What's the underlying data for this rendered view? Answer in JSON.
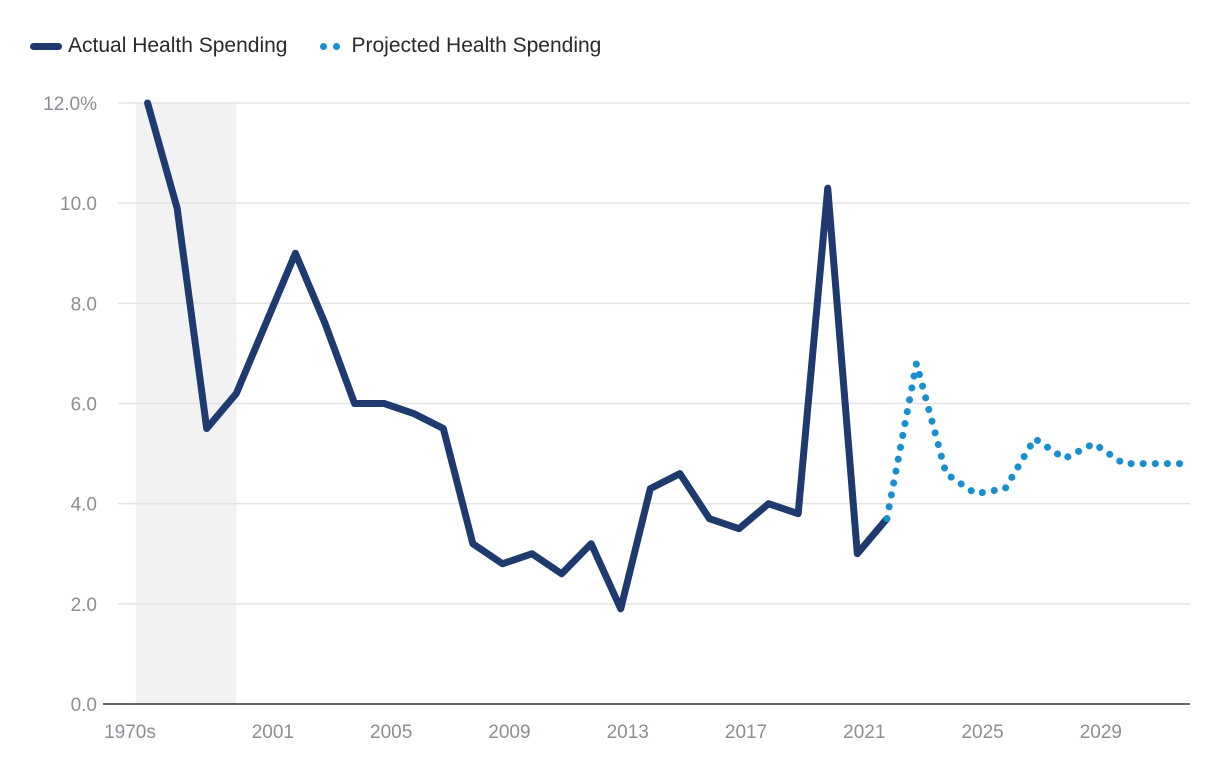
{
  "colors": {
    "actual": "#1f3a6e",
    "projected": "#1a8fd0",
    "grid": "#e3e3e3",
    "axis": "#333333",
    "shade": "#f2f2f2",
    "tick": "#8a8f96"
  },
  "legend": {
    "actual_label": "Actual Health Spending",
    "projected_label": "Projected Health Spending"
  },
  "chart_data": {
    "type": "line",
    "title": "",
    "xlabel": "",
    "ylabel": "",
    "ylim": [
      0,
      12
    ],
    "y_ticks": [
      {
        "value": 0,
        "label": "0.0"
      },
      {
        "value": 2,
        "label": "2.0"
      },
      {
        "value": 4,
        "label": "4.0"
      },
      {
        "value": 6,
        "label": "6.0"
      },
      {
        "value": 8,
        "label": "8.0"
      },
      {
        "value": 10,
        "label": "10.0"
      },
      {
        "value": 12,
        "label": "12.0%"
      }
    ],
    "xlim": [
      1996,
      2032.25
    ],
    "x_ticks": [
      {
        "value": 1996,
        "label": "1970s"
      },
      {
        "value": 2001,
        "label": "2001"
      },
      {
        "value": 2005,
        "label": "2005"
      },
      {
        "value": 2009,
        "label": "2009"
      },
      {
        "value": 2013,
        "label": "2013"
      },
      {
        "value": 2017,
        "label": "2017"
      },
      {
        "value": 2021,
        "label": "2021"
      },
      {
        "value": 2025,
        "label": "2025"
      },
      {
        "value": 2029,
        "label": "2029"
      }
    ],
    "shaded_range": [
      1996.6,
      2000
    ],
    "series": [
      {
        "name": "Actual Health Spending",
        "style": "solid",
        "points": [
          {
            "x": 1997,
            "y": 12.0
          },
          {
            "x": 1998,
            "y": 9.9
          },
          {
            "x": 1999,
            "y": 5.5
          },
          {
            "x": 2000,
            "y": 6.2
          },
          {
            "x": 2001,
            "y": 7.6
          },
          {
            "x": 2002,
            "y": 9.0
          },
          {
            "x": 2003,
            "y": 7.6
          },
          {
            "x": 2004,
            "y": 6.0
          },
          {
            "x": 2005,
            "y": 6.0
          },
          {
            "x": 2006,
            "y": 5.8
          },
          {
            "x": 2007,
            "y": 5.5
          },
          {
            "x": 2008,
            "y": 3.2
          },
          {
            "x": 2009,
            "y": 2.8
          },
          {
            "x": 2010,
            "y": 3.0
          },
          {
            "x": 2011,
            "y": 2.6
          },
          {
            "x": 2012,
            "y": 3.2
          },
          {
            "x": 2013,
            "y": 1.9
          },
          {
            "x": 2014,
            "y": 4.3
          },
          {
            "x": 2015,
            "y": 4.6
          },
          {
            "x": 2016,
            "y": 3.7
          },
          {
            "x": 2017,
            "y": 3.5
          },
          {
            "x": 2018,
            "y": 4.0
          },
          {
            "x": 2019,
            "y": 3.8
          },
          {
            "x": 2020,
            "y": 10.3
          },
          {
            "x": 2021,
            "y": 3.0
          },
          {
            "x": 2022,
            "y": 3.7
          }
        ]
      },
      {
        "name": "Projected Health Spending",
        "style": "dotted",
        "points": [
          {
            "x": 2022,
            "y": 3.7
          },
          {
            "x": 2023,
            "y": 6.8
          },
          {
            "x": 2024,
            "y": 4.6
          },
          {
            "x": 2025,
            "y": 4.2
          },
          {
            "x": 2026,
            "y": 4.3
          },
          {
            "x": 2027,
            "y": 5.3
          },
          {
            "x": 2028,
            "y": 4.9
          },
          {
            "x": 2029,
            "y": 5.2
          },
          {
            "x": 2030,
            "y": 4.8
          },
          {
            "x": 2031,
            "y": 4.8
          },
          {
            "x": 2032,
            "y": 4.8
          }
        ]
      }
    ]
  }
}
